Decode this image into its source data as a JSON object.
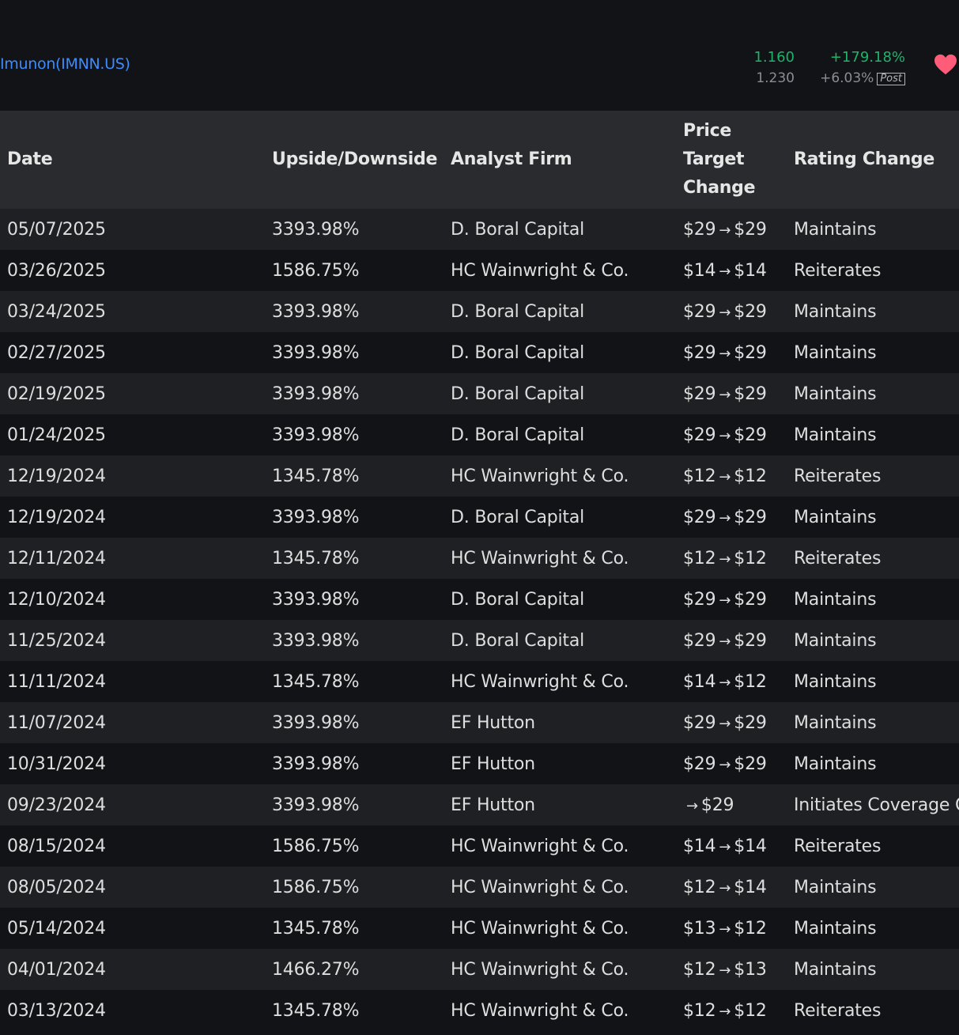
{
  "header": {
    "ticker": "Imunon(IMNN.US)",
    "price": "1.160",
    "change_pct": "+179.18%",
    "post_price": "1.230",
    "post_change_pct": "+6.03%",
    "post_label": "Post",
    "heart_icon": "heart-icon",
    "colors": {
      "accent": "#3d8bfd",
      "up": "#1fb36a",
      "heart": "#ff5c7a"
    }
  },
  "table": {
    "columns": {
      "date": "Date",
      "upside": "Upside/Downside",
      "firm": "Analyst Firm",
      "pt_line1": "Price",
      "pt_line2": "Target",
      "pt_line3": "Change",
      "rating": "Rating Change"
    },
    "rows": [
      {
        "date": "05/07/2025",
        "upside": "3393.98%",
        "firm": "D. Boral Capital",
        "pt_from": "$29",
        "pt_to": "$29",
        "rating": "Maintains"
      },
      {
        "date": "03/26/2025",
        "upside": "1586.75%",
        "firm": "HC Wainwright & Co.",
        "pt_from": "$14",
        "pt_to": "$14",
        "rating": "Reiterates"
      },
      {
        "date": "03/24/2025",
        "upside": "3393.98%",
        "firm": "D. Boral Capital",
        "pt_from": "$29",
        "pt_to": "$29",
        "rating": "Maintains"
      },
      {
        "date": "02/27/2025",
        "upside": "3393.98%",
        "firm": "D. Boral Capital",
        "pt_from": "$29",
        "pt_to": "$29",
        "rating": "Maintains"
      },
      {
        "date": "02/19/2025",
        "upside": "3393.98%",
        "firm": "D. Boral Capital",
        "pt_from": "$29",
        "pt_to": "$29",
        "rating": "Maintains"
      },
      {
        "date": "01/24/2025",
        "upside": "3393.98%",
        "firm": "D. Boral Capital",
        "pt_from": "$29",
        "pt_to": "$29",
        "rating": "Maintains"
      },
      {
        "date": "12/19/2024",
        "upside": "1345.78%",
        "firm": "HC Wainwright & Co.",
        "pt_from": "$12",
        "pt_to": "$12",
        "rating": "Reiterates"
      },
      {
        "date": "12/19/2024",
        "upside": "3393.98%",
        "firm": "D. Boral Capital",
        "pt_from": "$29",
        "pt_to": "$29",
        "rating": "Maintains"
      },
      {
        "date": "12/11/2024",
        "upside": "1345.78%",
        "firm": "HC Wainwright & Co.",
        "pt_from": "$12",
        "pt_to": "$12",
        "rating": "Reiterates"
      },
      {
        "date": "12/10/2024",
        "upside": "3393.98%",
        "firm": "D. Boral Capital",
        "pt_from": "$29",
        "pt_to": "$29",
        "rating": "Maintains"
      },
      {
        "date": "11/25/2024",
        "upside": "3393.98%",
        "firm": "D. Boral Capital",
        "pt_from": "$29",
        "pt_to": "$29",
        "rating": "Maintains"
      },
      {
        "date": "11/11/2024",
        "upside": "1345.78%",
        "firm": "HC Wainwright & Co.",
        "pt_from": "$14",
        "pt_to": "$12",
        "rating": "Maintains"
      },
      {
        "date": "11/07/2024",
        "upside": "3393.98%",
        "firm": "EF Hutton",
        "pt_from": "$29",
        "pt_to": "$29",
        "rating": "Maintains"
      },
      {
        "date": "10/31/2024",
        "upside": "3393.98%",
        "firm": "EF Hutton",
        "pt_from": "$29",
        "pt_to": "$29",
        "rating": "Maintains"
      },
      {
        "date": "09/23/2024",
        "upside": "3393.98%",
        "firm": "EF Hutton",
        "pt_from": "",
        "pt_to": "$29",
        "rating": "Initiates Coverage On"
      },
      {
        "date": "08/15/2024",
        "upside": "1586.75%",
        "firm": "HC Wainwright & Co.",
        "pt_from": "$14",
        "pt_to": "$14",
        "rating": "Reiterates"
      },
      {
        "date": "08/05/2024",
        "upside": "1586.75%",
        "firm": "HC Wainwright & Co.",
        "pt_from": "$12",
        "pt_to": "$14",
        "rating": "Maintains"
      },
      {
        "date": "05/14/2024",
        "upside": "1345.78%",
        "firm": "HC Wainwright & Co.",
        "pt_from": "$13",
        "pt_to": "$12",
        "rating": "Maintains"
      },
      {
        "date": "04/01/2024",
        "upside": "1466.27%",
        "firm": "HC Wainwright & Co.",
        "pt_from": "$12",
        "pt_to": "$13",
        "rating": "Maintains"
      },
      {
        "date": "03/13/2024",
        "upside": "1345.78%",
        "firm": "HC Wainwright & Co.",
        "pt_from": "$12",
        "pt_to": "$12",
        "rating": "Reiterates"
      }
    ]
  }
}
